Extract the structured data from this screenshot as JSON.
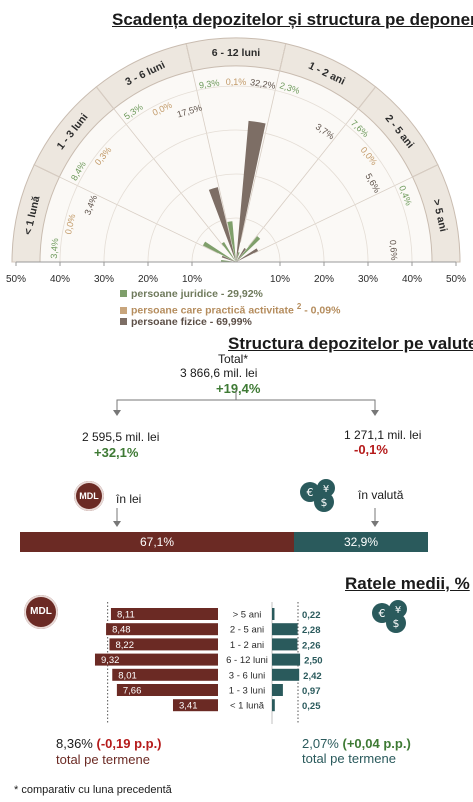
{
  "section1": {
    "title": "Scadența depozitelor și structura pe deponenți",
    "legend": [
      {
        "label": "persoane juridice - 29,92%",
        "color": "#7f9f6b",
        "text_color": "#6f7a5c"
      },
      {
        "label": "persoane care practică activitate",
        "sup": "2",
        "suffix": " - 0,09%",
        "color": "#c8a57c",
        "text_color": "#b58d5e"
      },
      {
        "label": "persoane fizice - 69,99%",
        "color": "#7d6e65",
        "text_color": "#5c4f47"
      }
    ]
  },
  "chart_data": [
    {
      "type": "polar-bar",
      "categories": [
        "< 1 lună",
        "1 - 3 luni",
        "3 - 6 luni",
        "6 - 12 luni",
        "1 - 2 ani",
        "2 - 5 ani",
        "> 5 ani"
      ],
      "axis_ticks_left": [
        "50%",
        "40%",
        "30%",
        "20%",
        "10%"
      ],
      "axis_ticks_right": [
        "10%",
        "20%",
        "30%",
        "40%",
        "50%"
      ],
      "rmax": 50,
      "series": [
        {
          "name": "persoane juridice - 29,92%",
          "color": "#7f9f6b",
          "label_color": "#6e9a5b",
          "values": [
            3.4,
            8.4,
            5.3,
            9.3,
            2.3,
            7.6,
            0.4
          ],
          "labels": [
            "3,4%",
            "8,4%",
            "5,3%",
            "9,3%",
            "2,3%",
            "7,6%",
            "0,4%"
          ]
        },
        {
          "name": "persoane care practică activitate",
          "color": "#c8a57c",
          "label_color": "#c29a68",
          "values": [
            0.0,
            0.3,
            0.0,
            0.1,
            0.0,
            0.0,
            0.0
          ],
          "labels": [
            "0,0%",
            "0,3%",
            "0,0%",
            "0,1%",
            "",
            "0,0%",
            ""
          ]
        },
        {
          "name": "persoane fizice - 69,99%",
          "color": "#7d6e65",
          "label_color": "#5f534b",
          "values": [
            3.4,
            0.0,
            17.5,
            32.2,
            3.7,
            5.6,
            0.6
          ],
          "labels": [
            "3,4%",
            "",
            "17,5%",
            "32,2%",
            "3,7%",
            "5,6%",
            "0,6%"
          ]
        }
      ]
    },
    {
      "type": "bar",
      "orientation": "horizontal-diverging",
      "categories": [
        "> 5 ani",
        "2 - 5 ani",
        "1 - 2 ani",
        "6 - 12 luni",
        "3 - 6 luni",
        "1 - 3 luni",
        "< 1 lună"
      ],
      "series": [
        {
          "name": "MDL",
          "color": "#6b2a24",
          "values": [
            8.11,
            8.48,
            8.22,
            9.32,
            8.01,
            7.66,
            3.41
          ],
          "labels": [
            "8,11",
            "8,48",
            "8,22",
            "9,32",
            "8,01",
            "7,66",
            "3,41"
          ]
        },
        {
          "name": "valută",
          "color": "#2a5a5c",
          "values": [
            0.22,
            2.28,
            2.26,
            2.5,
            2.42,
            0.97,
            0.25
          ],
          "labels": [
            "0,22",
            "2,28",
            "2,26",
            "2,50",
            "2,42",
            "0,97",
            "0,25"
          ]
        }
      ],
      "reference_mdl": 8.36,
      "reference_fx": 2.07
    }
  ],
  "section2": {
    "title": "Structura depozitelor pe valute",
    "total_label": "Total*",
    "total_value": "3 866,6 mil. lei",
    "total_change": "+19,4%",
    "lei_value": "2 595,5 mil. lei",
    "lei_change": "+32,1%",
    "fx_value": "1 271,1 mil. lei",
    "fx_change": "-0,1%",
    "lei_caption": "în lei",
    "fx_caption": "în valută",
    "mdl_badge": "MDL",
    "bar": {
      "lei_share": 67.1,
      "fx_share": 32.9,
      "lei_label": "67,1%",
      "fx_label": "32,9%",
      "lei_color": "#6b2a24",
      "fx_color": "#2a5a5c"
    }
  },
  "section3": {
    "title": "Ratele medii, %",
    "mdl_badge": "MDL",
    "mdl_total": "8,36%",
    "mdl_change": "(-0,19 p.p.)",
    "mdl_caption": "total pe termene",
    "fx_total": "2,07%",
    "fx_change": "(+0,04 p.p.)",
    "fx_caption": "total pe termene"
  },
  "footnote": "* comparativ cu luna precedentă"
}
